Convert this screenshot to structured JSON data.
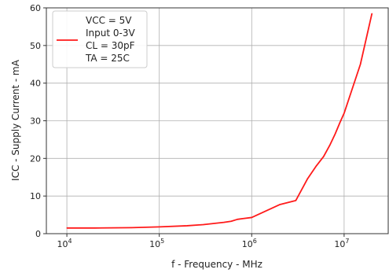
{
  "chart_data": {
    "type": "line",
    "title": "",
    "xlabel": "f - Frequency - MHz",
    "ylabel": "ICC - Supply Current - mA",
    "x_scale": "log",
    "xlim": [
      6000,
      30000000
    ],
    "ylim": [
      0,
      60
    ],
    "x_ticks": [
      {
        "value": 10000,
        "base": "10",
        "exp": "4"
      },
      {
        "value": 100000,
        "base": "10",
        "exp": "5"
      },
      {
        "value": 1000000,
        "base": "10",
        "exp": "6"
      },
      {
        "value": 10000000,
        "base": "10",
        "exp": "7"
      }
    ],
    "y_ticks": [
      "0",
      "10",
      "20",
      "30",
      "40",
      "50",
      "60"
    ],
    "grid": true,
    "legend": {
      "placement": "top-left",
      "lines": [
        "VCC = 5V",
        "Input 0-3V",
        "CL = 30pF",
        "TA = 25C"
      ]
    },
    "series": [
      {
        "color": "#ff1a1a",
        "x": [
          10000,
          20000,
          50000,
          100000,
          200000,
          300000,
          500000,
          600000,
          700000,
          800000,
          1000000,
          2000000,
          3000000,
          4000000,
          5000000,
          6000000,
          7000000,
          8000000,
          9000000,
          10000000,
          15000000,
          20000000
        ],
        "y": [
          1.5,
          1.5,
          1.6,
          1.8,
          2.1,
          2.4,
          3.0,
          3.3,
          3.8,
          4.0,
          4.3,
          7.7,
          8.8,
          14.5,
          18.0,
          20.5,
          23.5,
          26.5,
          29.5,
          32.0,
          45.0,
          58.5
        ]
      }
    ]
  }
}
